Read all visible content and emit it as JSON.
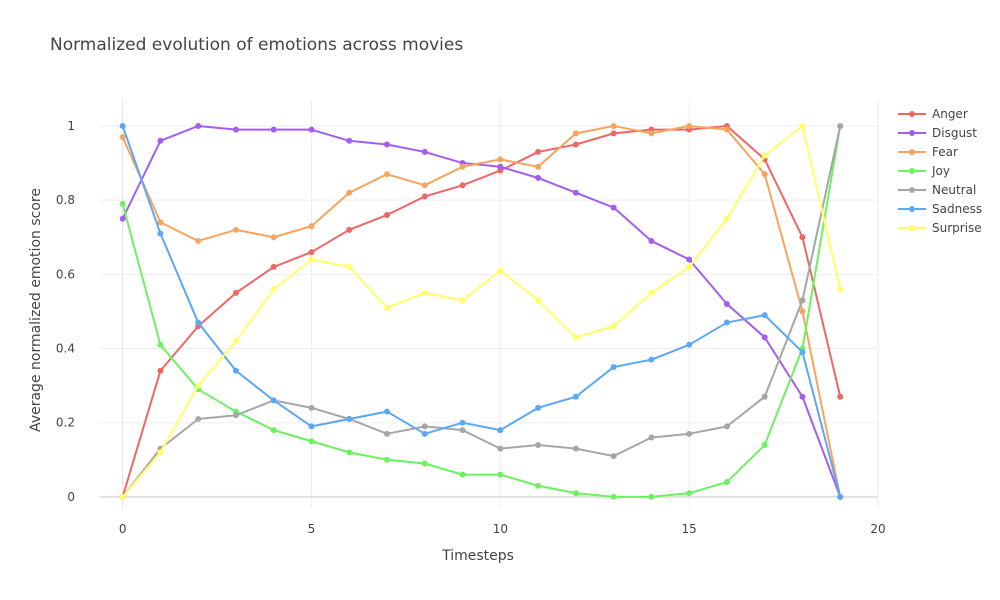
{
  "chart_data": {
    "type": "line",
    "title": "Normalized evolution of emotions across movies",
    "xlabel": "Timesteps",
    "ylabel": "Average normalized emotion score",
    "xlim": [
      -0.6,
      20.0
    ],
    "ylim": [
      -0.03,
      1.07
    ],
    "x_ticks": [
      0,
      5,
      10,
      15,
      20
    ],
    "y_ticks": [
      0,
      0.2,
      0.4,
      0.6,
      0.8,
      1
    ],
    "y_tick_labels": [
      "0",
      "0.2",
      "0.4",
      "0.6",
      "0.8",
      "1"
    ],
    "grid": true,
    "legend_position": "top-right",
    "x": [
      0,
      1,
      2,
      3,
      4,
      5,
      6,
      7,
      8,
      9,
      10,
      11,
      12,
      13,
      14,
      15,
      16,
      17,
      18,
      19
    ],
    "series": [
      {
        "name": "Anger",
        "color": "#EF6666",
        "values": [
          0.0,
          0.34,
          0.46,
          0.55,
          0.62,
          0.66,
          0.72,
          0.76,
          0.81,
          0.84,
          0.88,
          0.93,
          0.95,
          0.98,
          0.99,
          0.99,
          1.0,
          0.91,
          0.7,
          0.27
        ]
      },
      {
        "name": "Disgust",
        "color": "#A45EEF",
        "values": [
          0.75,
          0.96,
          1.0,
          0.99,
          0.99,
          0.99,
          0.96,
          0.95,
          0.93,
          0.9,
          0.89,
          0.86,
          0.82,
          0.78,
          0.69,
          0.64,
          0.52,
          0.43,
          0.27,
          0.0
        ]
      },
      {
        "name": "Fear",
        "color": "#F7A55E",
        "values": [
          0.97,
          0.74,
          0.69,
          0.72,
          0.7,
          0.73,
          0.82,
          0.87,
          0.84,
          0.89,
          0.91,
          0.89,
          0.98,
          1.0,
          0.98,
          1.0,
          0.99,
          0.87,
          0.5,
          0.0
        ]
      },
      {
        "name": "Joy",
        "color": "#6DF161",
        "values": [
          0.79,
          0.41,
          0.29,
          0.23,
          0.18,
          0.15,
          0.12,
          0.1,
          0.09,
          0.06,
          0.06,
          0.03,
          0.01,
          0.0,
          0.0,
          0.01,
          0.04,
          0.14,
          0.4,
          1.0
        ]
      },
      {
        "name": "Neutral",
        "color": "#A6A6A6",
        "values": [
          0.0,
          0.13,
          0.21,
          0.22,
          0.26,
          0.24,
          0.21,
          0.17,
          0.19,
          0.18,
          0.13,
          0.14,
          0.13,
          0.11,
          0.16,
          0.17,
          0.19,
          0.27,
          0.53,
          1.0
        ]
      },
      {
        "name": "Sadness",
        "color": "#5BA8F6",
        "values": [
          1.0,
          0.71,
          0.47,
          0.34,
          0.26,
          0.19,
          0.21,
          0.23,
          0.17,
          0.2,
          0.18,
          0.24,
          0.27,
          0.35,
          0.37,
          0.41,
          0.47,
          0.49,
          0.39,
          0.0
        ]
      },
      {
        "name": "Surprise",
        "color": "#FFFF66",
        "values": [
          0.0,
          0.12,
          0.3,
          0.42,
          0.56,
          0.64,
          0.62,
          0.51,
          0.55,
          0.53,
          0.61,
          0.53,
          0.43,
          0.46,
          0.55,
          0.62,
          0.75,
          0.92,
          1.0,
          0.56
        ]
      }
    ]
  }
}
